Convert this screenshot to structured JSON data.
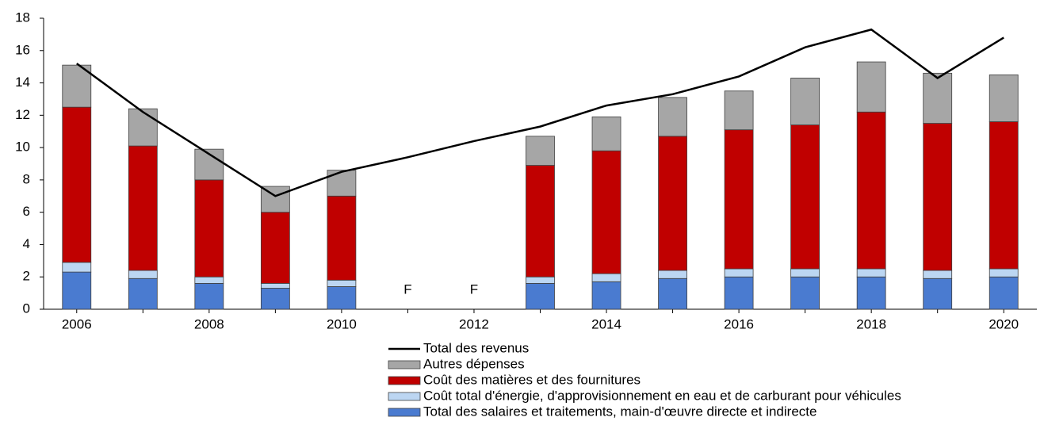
{
  "chart_data": {
    "type": "bar",
    "stacked": true,
    "categories": [
      "2006",
      null,
      "2008",
      null,
      "2010",
      null,
      "2012",
      null,
      "2014",
      null,
      "2016",
      null,
      "2018",
      null,
      "2020"
    ],
    "series": [
      {
        "name": "Total des salaires et traitements, main-d'œuvre directe et indirecte",
        "type": "bar",
        "color": "#4a7bd0",
        "values": [
          2.3,
          1.9,
          1.6,
          1.3,
          1.4,
          null,
          null,
          1.6,
          1.7,
          1.9,
          2.0,
          2.0,
          2.0,
          1.9,
          2.0
        ],
        "value_labels": [
          null,
          null,
          null,
          null,
          null,
          "F",
          "F",
          null,
          null,
          null,
          null,
          null,
          null,
          null,
          null
        ]
      },
      {
        "name": "Coût total d'énergie, d'approvisionnement en eau et de carburant pour véhicules",
        "type": "bar",
        "color": "#bcd6f2",
        "values": [
          0.6,
          0.5,
          0.4,
          0.3,
          0.4,
          null,
          null,
          0.4,
          0.5,
          0.5,
          0.5,
          0.5,
          0.5,
          0.5,
          0.5
        ]
      },
      {
        "name": "Coût des matières et des fournitures",
        "type": "bar",
        "color": "#c00000",
        "values": [
          9.6,
          7.7,
          6.0,
          4.4,
          5.2,
          null,
          null,
          6.9,
          7.6,
          8.3,
          8.6,
          8.9,
          9.7,
          9.1,
          9.1
        ]
      },
      {
        "name": "Autres dépenses",
        "type": "bar",
        "color": "#a6a6a6",
        "values": [
          2.6,
          2.3,
          1.9,
          1.6,
          1.6,
          null,
          null,
          1.8,
          2.1,
          2.4,
          2.4,
          2.9,
          3.1,
          3.1,
          2.9
        ]
      },
      {
        "name": "Total des revenus",
        "type": "line",
        "color": "#000000",
        "values": [
          15.2,
          12.2,
          9.6,
          7.0,
          8.5,
          9.4,
          10.4,
          11.3,
          12.6,
          13.3,
          14.4,
          16.2,
          17.3,
          14.3,
          16.8
        ]
      }
    ],
    "ylim": [
      0,
      18
    ],
    "yticks": [
      0,
      2,
      4,
      6,
      8,
      10,
      12,
      14,
      16,
      18
    ],
    "grid": false
  }
}
